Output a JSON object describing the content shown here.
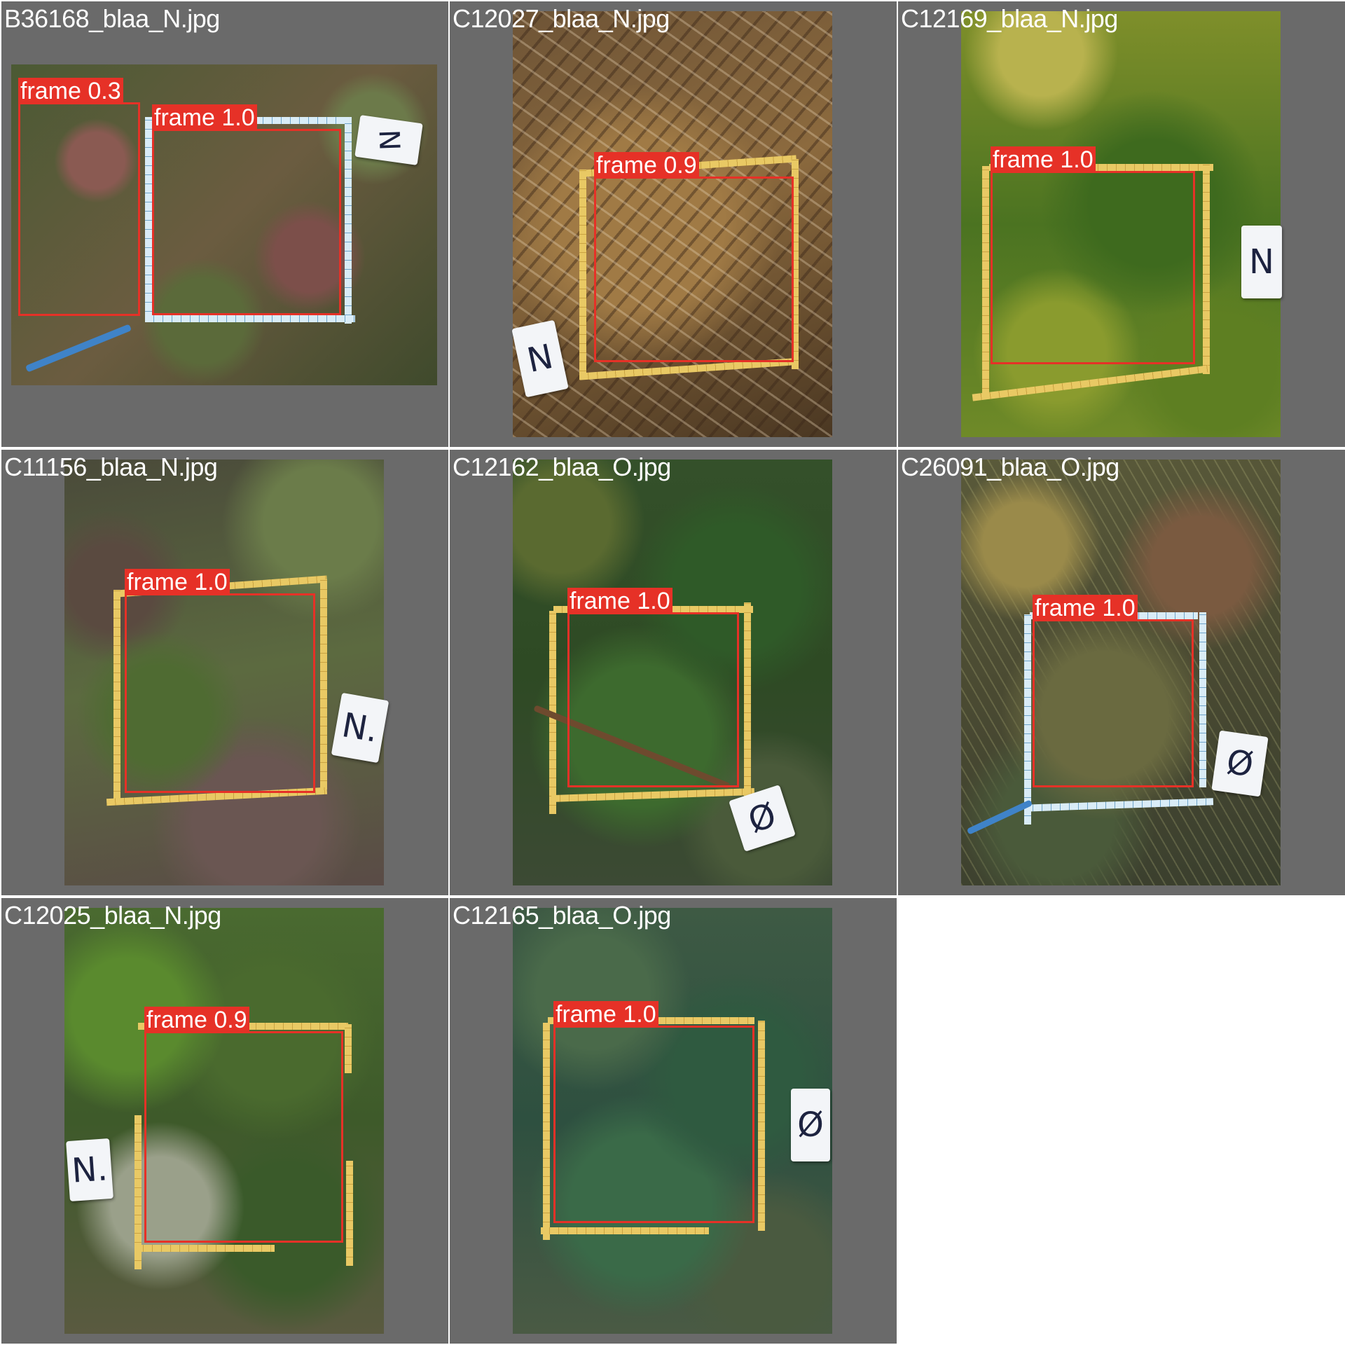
{
  "cells": [
    {
      "filename": "B36168_blaa_N.jpg",
      "marker": "N",
      "detections": [
        {
          "label": "frame 0.3"
        },
        {
          "label": "frame 1.0"
        }
      ]
    },
    {
      "filename": "C12027_blaa_N.jpg",
      "marker": "N",
      "detections": [
        {
          "label": "frame 0.9"
        }
      ]
    },
    {
      "filename": "C12169_blaa_N.jpg",
      "marker": "N",
      "detections": [
        {
          "label": "frame 1.0"
        }
      ]
    },
    {
      "filename": "C11156_blaa_N.jpg",
      "marker": "N.",
      "detections": [
        {
          "label": "frame 1.0"
        }
      ]
    },
    {
      "filename": "C12162_blaa_O.jpg",
      "marker": "Ø",
      "detections": [
        {
          "label": "frame 1.0"
        }
      ]
    },
    {
      "filename": "C26091_blaa_O.jpg",
      "marker": "Ø",
      "detections": [
        {
          "label": "frame 1.0"
        }
      ]
    },
    {
      "filename": "C12025_blaa_N.jpg",
      "marker": "N.",
      "detections": [
        {
          "label": "frame 0.9"
        }
      ]
    },
    {
      "filename": "C12165_blaa_O.jpg",
      "marker": "Ø",
      "detections": [
        {
          "label": "frame 1.0"
        }
      ]
    }
  ],
  "colors": {
    "box": "#e63127",
    "cell_background": "#6a6a6a",
    "page_background": "#ffffff"
  }
}
